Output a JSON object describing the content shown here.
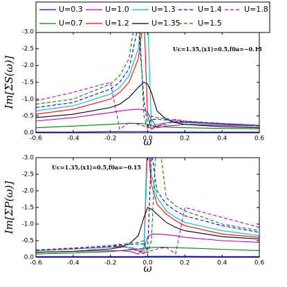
{
  "chart_data": [
    {
      "type": "line",
      "ylabel": "Im[ΣS(ω)]",
      "xlabel": "ω",
      "annotation": "Uc=1.35,⟨x1⟩=0.5,f0a=−0.15",
      "xlim": [
        -0.6,
        0.6
      ],
      "ylim": [
        0,
        -3
      ],
      "xticks": [
        -0.6,
        -0.4,
        -0.2,
        {
          "value": 0,
          "label": "0.0"
        },
        0.2,
        0.4,
        0.6
      ],
      "yticks": [
        {
          "value": 0,
          "label": "0.0"
        },
        -0.5,
        {
          "value": -1,
          "label": "-1.0"
        },
        -1.5,
        {
          "value": -2,
          "label": "-2.0"
        },
        -2.5,
        {
          "value": -3,
          "label": "-3.0"
        }
      ],
      "x": [
        -0.6,
        -0.4,
        -0.2,
        -0.15,
        -0.1,
        -0.05,
        -0.02,
        0,
        0.02,
        0.05,
        0.1,
        0.15,
        0.2,
        0.4,
        0.6
      ],
      "series": [
        {
          "name": "U=0.3",
          "color": "#0000ff",
          "linestyle": "solid",
          "values": [
            -0.02,
            -0.02,
            -0.03,
            -0.03,
            -0.03,
            -0.03,
            -0.03,
            -0.03,
            -0.02,
            -0.02,
            -0.02,
            -0.02,
            -0.02,
            -0.02,
            -0.02
          ]
        },
        {
          "name": "U=0.7",
          "color": "#008000",
          "linestyle": "solid",
          "values": [
            -0.15,
            -0.2,
            -0.25,
            -0.27,
            -0.28,
            -0.28,
            -0.27,
            -0.25,
            -0.22,
            -0.18,
            -0.17,
            -0.16,
            -0.15,
            -0.13,
            -0.12
          ]
        },
        {
          "name": "U=1.0",
          "color": "#bf00bf",
          "linestyle": "solid",
          "values": [
            -0.35,
            -0.45,
            -0.6,
            -0.65,
            -0.68,
            -0.7,
            -0.68,
            -0.6,
            -0.4,
            -0.15,
            -0.2,
            -0.22,
            -0.25,
            -0.22,
            -0.2
          ]
        },
        {
          "name": "U=1.2",
          "color": "#ff0000",
          "linestyle": "solid",
          "values": [
            -0.55,
            -0.7,
            -1.0,
            -1.2,
            -1.5,
            -2.2,
            -3.5,
            -0.5,
            -0.1,
            -0.2,
            -0.3,
            -0.32,
            -0.32,
            -0.27,
            -0.22
          ]
        },
        {
          "name": "U=1.3",
          "color": "#00bfbf",
          "linestyle": "solid",
          "values": [
            -0.65,
            -0.8,
            -1.15,
            -1.35,
            -1.7,
            -2.5,
            -4,
            -3.5,
            -0.2,
            -0.25,
            -0.3,
            -0.3,
            -0.3,
            -0.25,
            -0.2
          ]
        },
        {
          "name": "U=1.35",
          "color": "#000000",
          "linestyle": "solid",
          "values": [
            -0.45,
            -0.55,
            -0.75,
            -0.85,
            -1.05,
            -1.35,
            -1.5,
            -1.45,
            -1.2,
            -0.65,
            -0.4,
            -0.3,
            -0.25,
            -0.18,
            -0.15
          ]
        },
        {
          "name": "U=1.4",
          "color": "#0000ff",
          "linestyle": "dashed",
          "values": [
            -0.75,
            -0.9,
            -1.3,
            -1.5,
            -1.9,
            -3.2,
            -1.0,
            -0.2,
            -0.4,
            -0.4,
            -0.38,
            -0.35,
            -0.33,
            -0.27,
            -0.22
          ]
        },
        {
          "name": "U=1.5",
          "color": "#008000",
          "linestyle": "dashed",
          "values": [
            -0.85,
            -1.0,
            -1.45,
            -1.7,
            -2.2,
            -4,
            -0.5,
            -0.1,
            -0.5,
            -0.45,
            -0.42,
            -0.38,
            -0.35,
            -0.28,
            -0.22
          ]
        },
        {
          "name": "U=1.8",
          "color": "#bf00bf",
          "linestyle": "dashed",
          "values": [
            -0.95,
            -1.2,
            -1.5,
            -0.1,
            -0.3,
            -0.25,
            -0.2,
            -0.15,
            -0.15,
            -0.2,
            -0.25,
            -0.4,
            -0.35,
            -0.25,
            -0.2
          ]
        }
      ]
    },
    {
      "type": "line",
      "ylabel": "Im[ΣP(ω)]",
      "xlabel": "ω",
      "annotation": "Uc=1.35,⟨x1⟩=0.5,f0a=−0.15",
      "xlim": [
        -0.6,
        0.6
      ],
      "ylim": [
        0,
        -3
      ],
      "xticks": [
        -0.6,
        -0.4,
        -0.2,
        {
          "value": 0,
          "label": "0.0"
        },
        0.2,
        0.4,
        0.6
      ],
      "yticks": [
        {
          "value": 0,
          "label": "0.0"
        },
        -0.5,
        {
          "value": -1,
          "label": "-1.0"
        },
        -1.5,
        {
          "value": -2,
          "label": "-2.0"
        },
        -2.5,
        {
          "value": -3,
          "label": "-3.0"
        }
      ],
      "x": [
        -0.6,
        -0.4,
        -0.2,
        -0.15,
        -0.1,
        -0.05,
        -0.02,
        0,
        0.02,
        0.05,
        0.1,
        0.15,
        0.2,
        0.4,
        0.6
      ],
      "series": [
        {
          "name": "U=0.3",
          "color": "#0000ff",
          "linestyle": "solid",
          "values": [
            -0.02,
            -0.02,
            -0.02,
            -0.02,
            -0.02,
            -0.02,
            -0.02,
            -0.03,
            -0.03,
            -0.03,
            -0.03,
            -0.03,
            -0.03,
            -0.02,
            -0.02
          ]
        },
        {
          "name": "U=0.7",
          "color": "#008000",
          "linestyle": "solid",
          "values": [
            -0.1,
            -0.13,
            -0.17,
            -0.2,
            -0.22,
            -0.25,
            -0.27,
            -0.28,
            -0.29,
            -0.3,
            -0.3,
            -0.29,
            -0.28,
            -0.24,
            -0.2
          ]
        },
        {
          "name": "U=1.0",
          "color": "#bf00bf",
          "linestyle": "solid",
          "values": [
            -0.15,
            -0.18,
            -0.2,
            -0.2,
            -0.18,
            -0.1,
            -0.3,
            -0.6,
            -0.7,
            -0.7,
            -0.68,
            -0.65,
            -0.6,
            -0.5,
            -0.45
          ]
        },
        {
          "name": "U=1.2",
          "color": "#ff0000",
          "linestyle": "solid",
          "values": [
            -0.2,
            -0.25,
            -0.3,
            -0.32,
            -0.3,
            -0.2,
            -0.1,
            -3.5,
            -2.2,
            -1.6,
            -1.3,
            -1.1,
            -0.95,
            -0.7,
            -0.6
          ]
        },
        {
          "name": "U=1.3",
          "color": "#00bfbf",
          "linestyle": "solid",
          "values": [
            -0.2,
            -0.25,
            -0.3,
            -0.3,
            -0.3,
            -0.25,
            -0.2,
            -4,
            -2.5,
            -1.8,
            -1.4,
            -1.2,
            -1.05,
            -0.8,
            -0.65
          ]
        },
        {
          "name": "U=1.35",
          "color": "#000000",
          "linestyle": "solid",
          "values": [
            -0.15,
            -0.18,
            -0.25,
            -0.3,
            -0.4,
            -0.65,
            -1.2,
            -1.5,
            -1.45,
            -1.3,
            -1.05,
            -0.9,
            -0.8,
            -0.62,
            -0.55
          ]
        },
        {
          "name": "U=1.4",
          "color": "#0000ff",
          "linestyle": "dashed",
          "values": [
            -0.22,
            -0.27,
            -0.33,
            -0.35,
            -0.38,
            -0.4,
            -0.4,
            -0.2,
            -3.2,
            -2.0,
            -1.6,
            -1.4,
            -1.25,
            -0.95,
            -0.75
          ]
        },
        {
          "name": "U=1.5",
          "color": "#008000",
          "linestyle": "dashed",
          "values": [
            -0.22,
            -0.28,
            -0.35,
            -0.38,
            -0.42,
            -0.45,
            -0.5,
            -0.1,
            -0.5,
            -4,
            -1.8,
            -1.55,
            -1.4,
            -1.0,
            -0.8
          ]
        },
        {
          "name": "U=1.8",
          "color": "#bf00bf",
          "linestyle": "dashed",
          "values": [
            -0.2,
            -0.25,
            -0.35,
            -0.4,
            -0.25,
            -0.2,
            -0.15,
            -0.15,
            -0.2,
            -0.25,
            -0.3,
            -0.1,
            -1.5,
            -1.2,
            -0.9
          ]
        }
      ]
    }
  ]
}
